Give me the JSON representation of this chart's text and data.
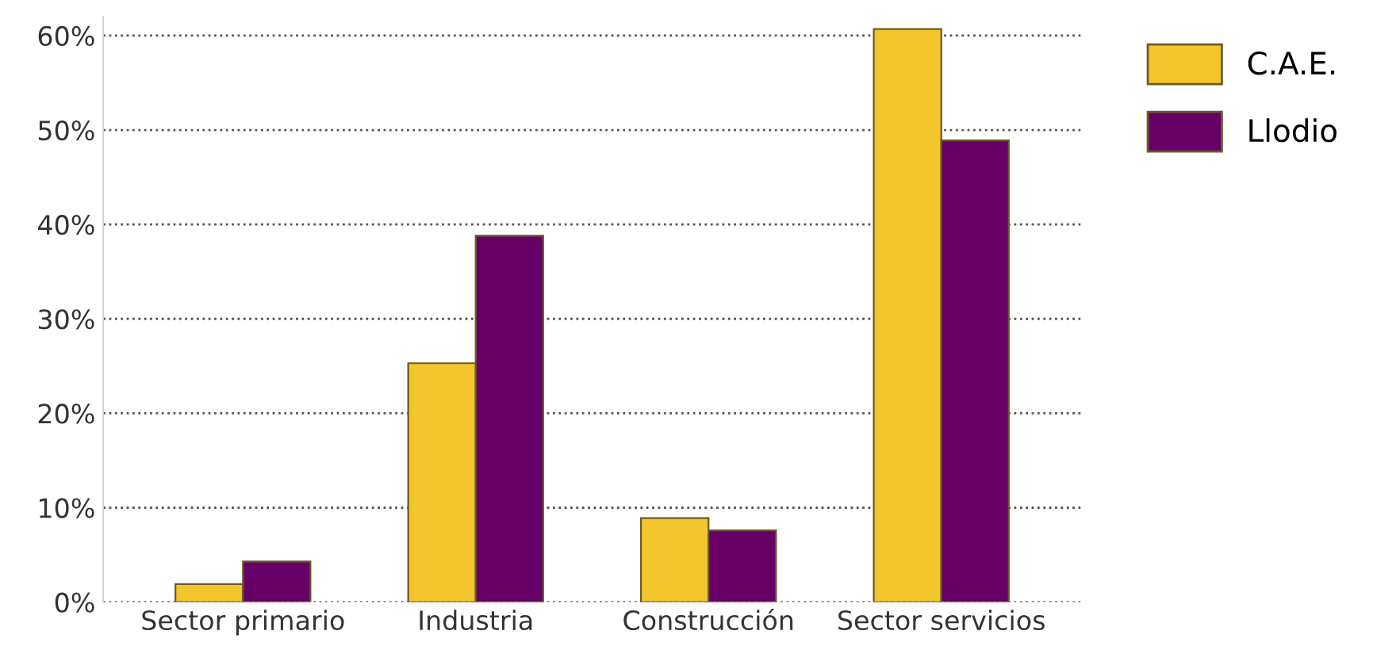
{
  "chart_data": {
    "type": "bar",
    "categories": [
      "Sector primario",
      "Industria",
      "Construcción",
      "Sector servicios"
    ],
    "series": [
      {
        "name": "C.A.E.",
        "color": "#f2c62c",
        "values": [
          1.9,
          25.3,
          8.9,
          60.7
        ]
      },
      {
        "name": "Llodio",
        "color": "#660066",
        "values": [
          4.3,
          38.8,
          7.6,
          48.9
        ]
      }
    ],
    "ylim": [
      0,
      62
    ],
    "yticks": [
      {
        "value": 0,
        "label": "0%"
      },
      {
        "value": 10,
        "label": "10%"
      },
      {
        "value": 20,
        "label": "20%"
      },
      {
        "value": 30,
        "label": "30%"
      },
      {
        "value": 40,
        "label": "40%"
      },
      {
        "value": 50,
        "label": "50%"
      },
      {
        "value": 60,
        "label": "60%"
      }
    ],
    "grid": "y",
    "line_style": "dotted",
    "legend": "top right"
  }
}
